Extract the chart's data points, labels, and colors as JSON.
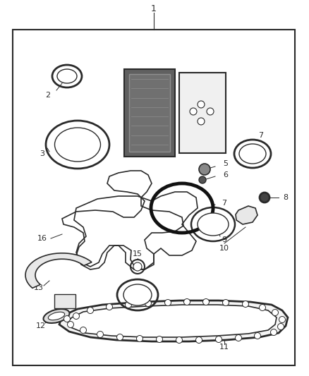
{
  "background_color": "#ffffff",
  "border_color": "#1a1a1a",
  "line_color": "#2a2a2a",
  "fig_width": 4.38,
  "fig_height": 5.33,
  "dpi": 100
}
